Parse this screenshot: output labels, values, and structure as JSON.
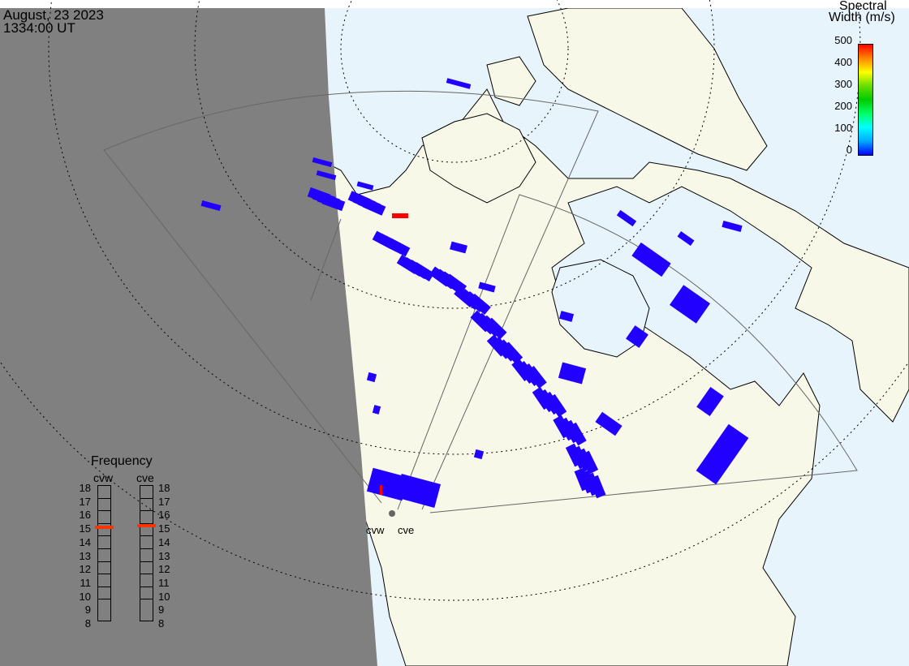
{
  "header": {
    "date": "August, 23 2023",
    "time": "1334:00 UT"
  },
  "colorbar": {
    "title_line1": "Spectral",
    "title_line2": "Width (m/s)",
    "ticks": [
      "500",
      "400",
      "300",
      "200",
      "100",
      "0"
    ],
    "range": [
      0,
      500
    ],
    "colors": [
      "#0000ff",
      "#00aaff",
      "#00ffff",
      "#00ff66",
      "#00cc00",
      "#66dd00",
      "#ffff00",
      "#ff8800",
      "#ff0000"
    ]
  },
  "frequency": {
    "title": "Frequency",
    "radars": [
      {
        "name": "cvw",
        "value_mhz": 14.9
      },
      {
        "name": "cve",
        "value_mhz": 15.0
      }
    ],
    "ticks": [
      "18",
      "17",
      "16",
      "15",
      "14",
      "13",
      "12",
      "11",
      "10",
      "9",
      "8"
    ],
    "range": [
      8,
      18
    ]
  },
  "map": {
    "site_labels": [
      "cvw",
      "cve"
    ],
    "colors": {
      "night": "#808080",
      "ocean": "#e8f4fc",
      "land": "#f8f8e8",
      "scatter": "#2200ff",
      "high_width": "#ff0000"
    }
  }
}
